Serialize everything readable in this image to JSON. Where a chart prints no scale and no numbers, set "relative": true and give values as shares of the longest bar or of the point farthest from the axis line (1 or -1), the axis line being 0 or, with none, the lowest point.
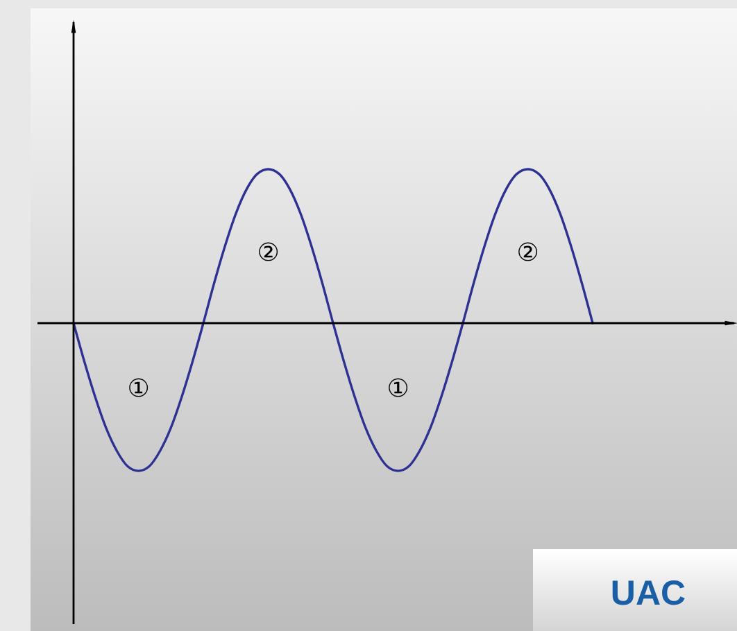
{
  "chart_data": {
    "type": "line",
    "relative": true,
    "title": "UAC",
    "categories": [
      null,
      null,
      null,
      null,
      null,
      null,
      null,
      null,
      null,
      null,
      null,
      null,
      null,
      null,
      null,
      null,
      null,
      null,
      null,
      null,
      null,
      null,
      null,
      null,
      null,
      null,
      null,
      null,
      null,
      null,
      null,
      null,
      null,
      null,
      null,
      null,
      null,
      null,
      null,
      null,
      null,
      null,
      null,
      null,
      null,
      null,
      null,
      null,
      null
    ],
    "series": [
      {
        "color": "#2e3192",
        "values": [
          0,
          -0.25,
          -0.48,
          -0.68,
          -0.83,
          -0.93,
          -0.96,
          -0.93,
          -0.83,
          -0.68,
          -0.48,
          -0.25,
          0,
          0.26,
          0.5,
          0.71,
          0.87,
          0.97,
          1,
          0.97,
          0.87,
          0.71,
          0.5,
          0.26,
          0,
          -0.25,
          -0.48,
          -0.68,
          -0.83,
          -0.93,
          -0.96,
          -0.93,
          -0.83,
          -0.68,
          -0.48,
          -0.25,
          0,
          0.26,
          0.5,
          0.71,
          0.87,
          0.97,
          1,
          0.97,
          0.87,
          0.71,
          0.5,
          0.26,
          0
        ]
      }
    ],
    "annotations": [
      "①",
      "②",
      "①",
      "②"
    ],
    "line_style": "solid"
  }
}
